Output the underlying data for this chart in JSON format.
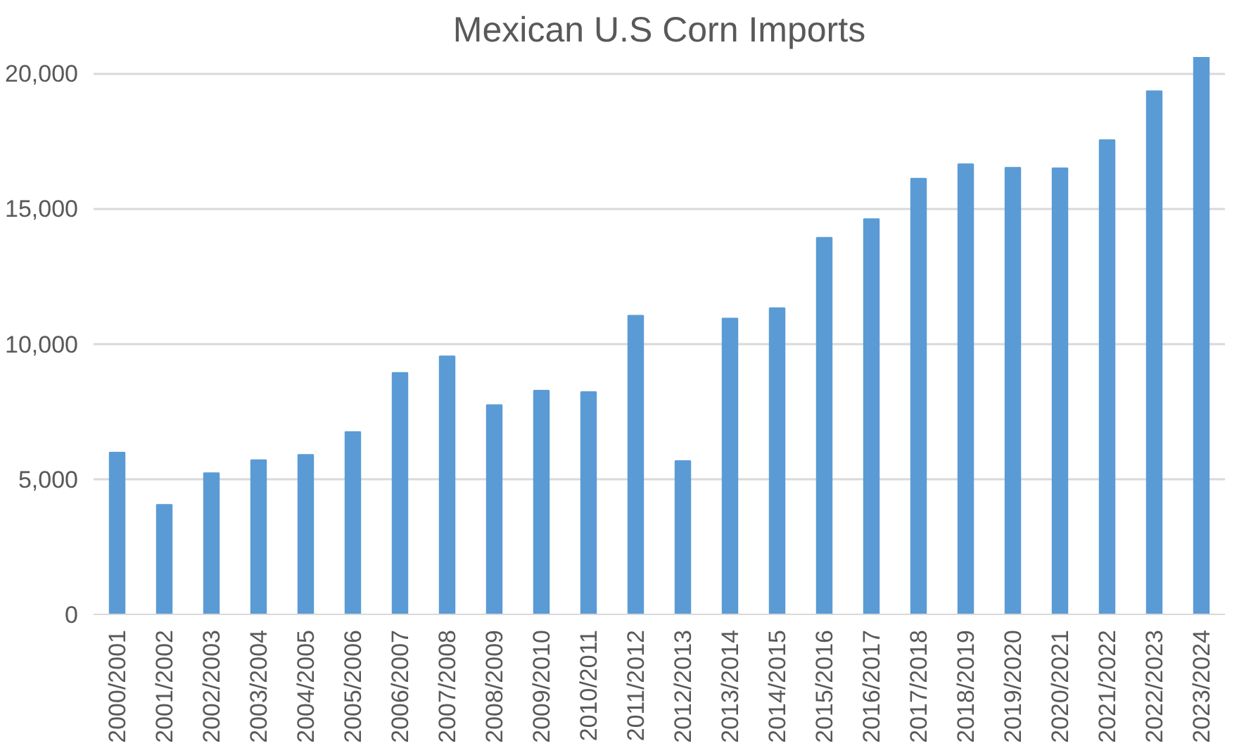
{
  "chart_data": {
    "type": "bar",
    "title": "Mexican U.S Corn Imports",
    "categories": [
      "2000/2001",
      "2001/2002",
      "2002/2003",
      "2003/2004",
      "2004/2005",
      "2005/2006",
      "2006/2007",
      "2007/2008",
      "2008/2009",
      "2009/2010",
      "2010/2011",
      "2011/2012",
      "2012/2013",
      "2013/2014",
      "2014/2015",
      "2015/2016",
      "2016/2017",
      "2017/2018",
      "2018/2019",
      "2019/2020",
      "2020/2021",
      "2021/2022",
      "2022/2023",
      "2023/2024"
    ],
    "values": [
      5980,
      4050,
      5220,
      5700,
      5900,
      6740,
      8930,
      9540,
      7740,
      8270,
      8220,
      11040,
      5670,
      10940,
      11320,
      13920,
      14610,
      16110,
      16640,
      16510,
      16490,
      17530,
      19340,
      20590
    ],
    "color": "#5b9bd5",
    "ylim": [
      0,
      20600
    ],
    "yticks": [
      {
        "value": 0,
        "label": "0"
      },
      {
        "value": 5000,
        "label": "5,000"
      },
      {
        "value": 10000,
        "label": "10,000"
      },
      {
        "value": 15000,
        "label": "15,000"
      },
      {
        "value": 20000,
        "label": "20,000"
      }
    ],
    "grid": "y"
  }
}
